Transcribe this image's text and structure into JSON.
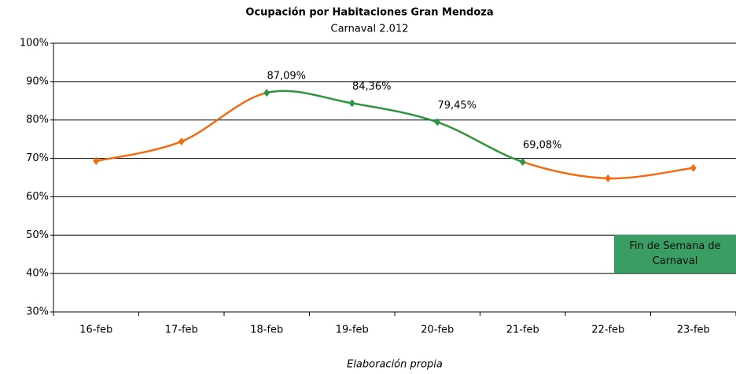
{
  "chart_data": {
    "type": "line",
    "title": "Ocupación por Habitaciones Gran Mendoza",
    "subtitle": "Carnaval 2.012",
    "categories": [
      "16-feb",
      "17-feb",
      "18-feb",
      "19-feb",
      "20-feb",
      "21-feb",
      "22-feb",
      "23-feb"
    ],
    "series": [
      {
        "color": "#f26b10",
        "values": [
          69.3,
          74.4,
          87.09,
          84.36,
          79.45,
          69.08,
          64.8,
          67.5
        ],
        "value_labels": [
          null,
          null,
          "87,09%",
          "84,36%",
          "79,45%",
          "69,08%",
          null,
          null
        ],
        "highlight": {
          "from": 2,
          "to": 5,
          "color": "#2e9440"
        }
      }
    ],
    "ylim": [
      30,
      100
    ],
    "yticks": [
      {
        "value": 30,
        "label": "30%"
      },
      {
        "value": 40,
        "label": "40%"
      },
      {
        "value": 50,
        "label": "50%"
      },
      {
        "value": 60,
        "label": "60%"
      },
      {
        "value": 70,
        "label": "70%"
      },
      {
        "value": 80,
        "label": "80%"
      },
      {
        "value": 90,
        "label": "90%"
      },
      {
        "value": 100,
        "label": "100%"
      }
    ],
    "grid": true,
    "smooth": true,
    "annotation": {
      "text": "Fin de Semana de Carnaval",
      "color": "#3a9d62"
    },
    "footer": "Elaboración propia"
  }
}
